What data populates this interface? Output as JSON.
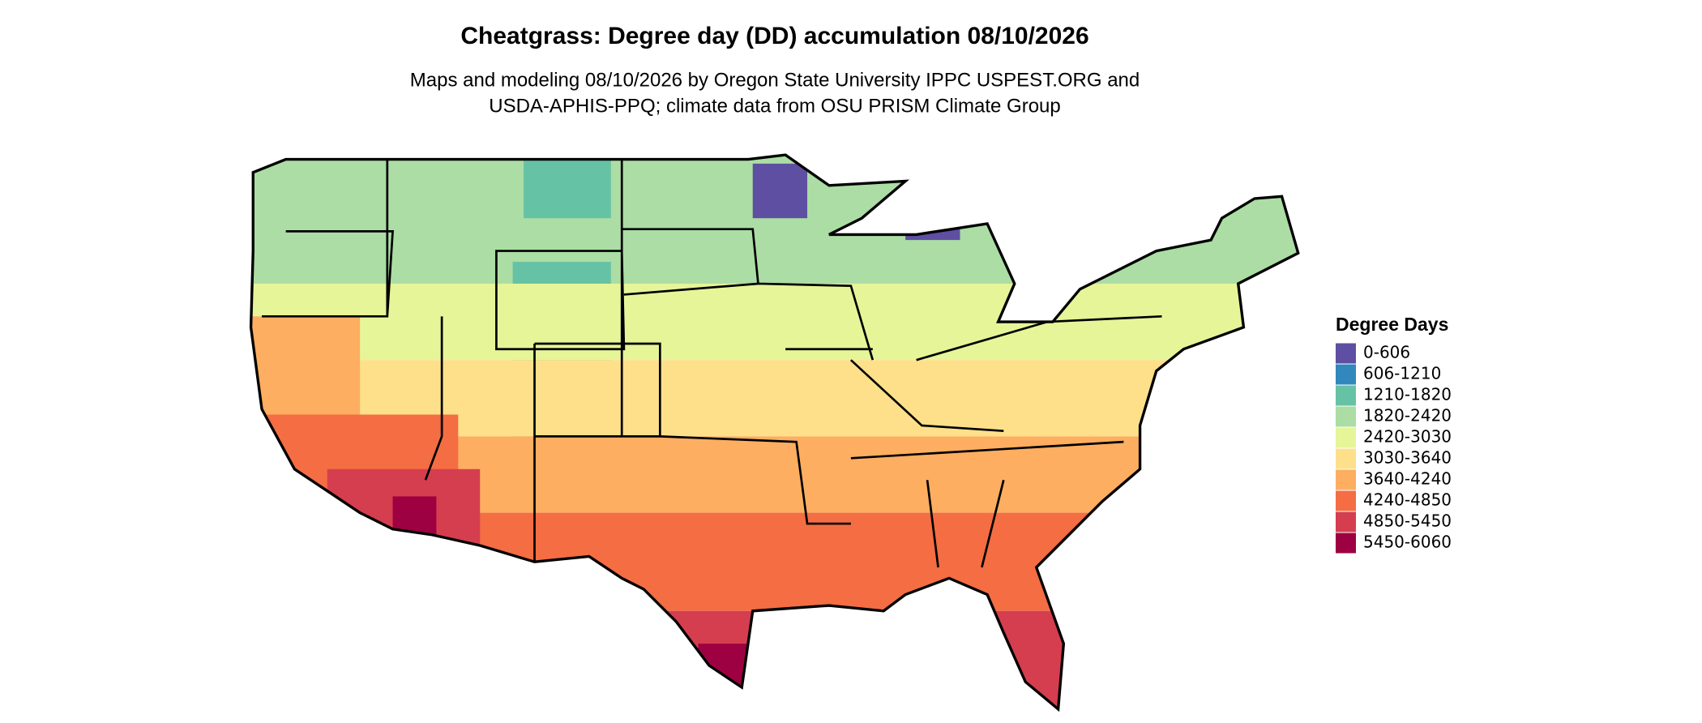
{
  "title": "Cheatgrass: Degree day (DD) accumulation 08/10/2026",
  "subtitle": [
    "Maps and modeling 08/10/2026 by Oregon State University IPPC USPEST.ORG and",
    "USDA-APHIS-PPQ; climate data from OSU PRISM Climate Group"
  ],
  "legend": {
    "title": "Degree Days",
    "items": [
      {
        "label": "0-606",
        "color": "#5e4fa2"
      },
      {
        "label": "606-1210",
        "color": "#3288bd"
      },
      {
        "label": "1210-1820",
        "color": "#66c2a5"
      },
      {
        "label": "1820-2420",
        "color": "#abdda4"
      },
      {
        "label": "2420-3030",
        "color": "#e6f598"
      },
      {
        "label": "3030-3640",
        "color": "#fee08b"
      },
      {
        "label": "3640-4240",
        "color": "#fdae61"
      },
      {
        "label": "4240-4850",
        "color": "#f46d43"
      },
      {
        "label": "4850-5450",
        "color": "#d53e4f"
      },
      {
        "label": "5450-6060",
        "color": "#9e0142"
      }
    ]
  }
}
